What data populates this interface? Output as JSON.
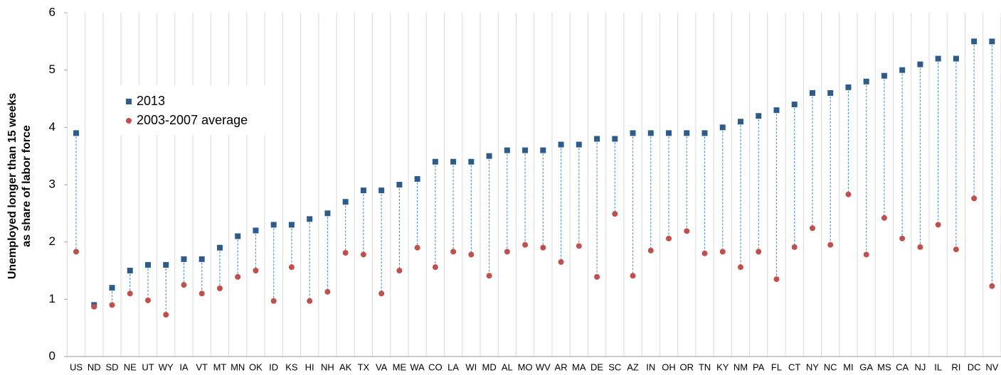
{
  "chart_data": {
    "type": "dot",
    "ylabel": [
      "Unemployed longer than 15 weeks",
      "as share of labor force"
    ],
    "categories": [
      "US",
      "ND",
      "SD",
      "NE",
      "UT",
      "WY",
      "IA",
      "VT",
      "MT",
      "MN",
      "OK",
      "ID",
      "KS",
      "HI",
      "NH",
      "AK",
      "TX",
      "VA",
      "ME",
      "WA",
      "CO",
      "LA",
      "WI",
      "MD",
      "AL",
      "MO",
      "WV",
      "AR",
      "MA",
      "DE",
      "SC",
      "AZ",
      "IN",
      "OH",
      "OR",
      "TN",
      "KY",
      "NM",
      "PA",
      "FL",
      "CT",
      "NY",
      "NC",
      "MI",
      "GA",
      "MS",
      "CA",
      "NJ",
      "IL",
      "RI",
      "DC",
      "NV"
    ],
    "series": [
      {
        "name": "2013",
        "color": "#2e5c8a",
        "marker": "square",
        "values": [
          3.9,
          0.9,
          1.2,
          1.5,
          1.6,
          1.6,
          1.7,
          1.7,
          1.9,
          2.1,
          2.2,
          2.3,
          2.3,
          2.4,
          2.5,
          2.7,
          2.9,
          2.9,
          3.0,
          3.1,
          3.4,
          3.4,
          3.4,
          3.5,
          3.6,
          3.6,
          3.6,
          3.7,
          3.7,
          3.8,
          3.8,
          3.9,
          3.9,
          3.9,
          3.9,
          3.9,
          4.0,
          4.1,
          4.2,
          4.3,
          4.4,
          4.6,
          4.6,
          4.7,
          4.8,
          4.9,
          5.0,
          5.1,
          5.2,
          5.2,
          5.5,
          5.5
        ]
      },
      {
        "name": "2003-2007 average",
        "color": "#c0504d",
        "marker": "circle",
        "values": [
          1.83,
          0.87,
          0.9,
          1.1,
          0.98,
          0.73,
          1.25,
          1.1,
          1.19,
          1.39,
          1.5,
          0.97,
          1.56,
          0.97,
          1.13,
          1.81,
          1.78,
          1.1,
          1.5,
          1.9,
          1.56,
          1.83,
          1.78,
          1.41,
          1.83,
          1.95,
          1.9,
          1.65,
          1.93,
          1.39,
          2.49,
          1.41,
          1.85,
          2.06,
          2.19,
          1.8,
          1.83,
          1.56,
          1.83,
          1.35,
          1.91,
          2.24,
          1.95,
          2.83,
          1.78,
          2.42,
          2.06,
          1.91,
          2.3,
          1.87,
          2.76,
          1.23
        ]
      }
    ],
    "connector_color": "#5b9bd5",
    "ylim": [
      0,
      6
    ],
    "yticks": [
      0,
      1,
      2,
      3,
      4,
      5,
      6
    ],
    "grid": true,
    "legend": "upper left"
  }
}
